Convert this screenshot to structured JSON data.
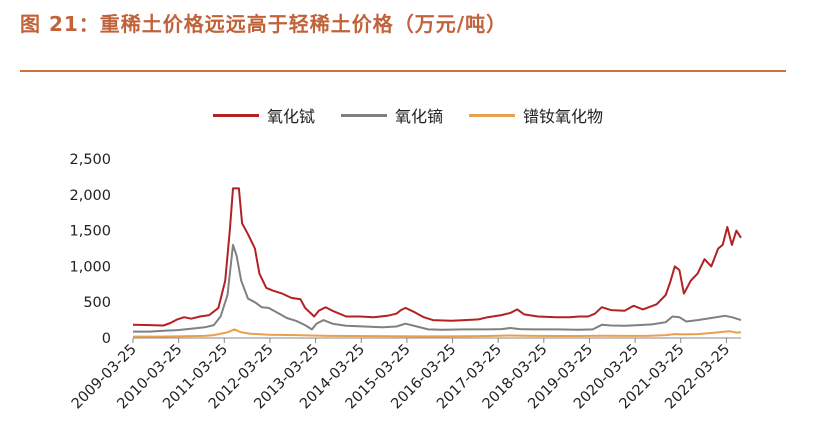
{
  "header": {
    "title": "图 21：重稀土价格远远高于轻稀土价格（万元/吨）"
  },
  "chart_data": {
    "type": "line",
    "title": "图 21：重稀土价格远远高于轻稀土价格（万元/吨）",
    "xlabel": "",
    "ylabel": "",
    "ylim": [
      0,
      2500
    ],
    "yticks": [
      "0",
      "500",
      "1,000",
      "1,500",
      "2,000",
      "2,500"
    ],
    "categories": [
      "2009-03-25",
      "2010-03-25",
      "2011-03-25",
      "2012-03-25",
      "2013-03-25",
      "2014-03-25",
      "2015-03-25",
      "2016-03-25",
      "2017-03-25",
      "2018-03-25",
      "2019-03-25",
      "2020-03-25",
      "2021-03-25",
      "2022-03-25"
    ],
    "x_start": 2009.23,
    "x_end": 2022.55,
    "legend_position": "top-center",
    "series": [
      {
        "name": "氧化铽",
        "color": "#b22222",
        "points": [
          [
            2009.23,
            185
          ],
          [
            2009.6,
            180
          ],
          [
            2009.9,
            175
          ],
          [
            2010.05,
            210
          ],
          [
            2010.2,
            260
          ],
          [
            2010.35,
            290
          ],
          [
            2010.5,
            270
          ],
          [
            2010.7,
            300
          ],
          [
            2010.9,
            320
          ],
          [
            2011.1,
            420
          ],
          [
            2011.25,
            800
          ],
          [
            2011.35,
            1500
          ],
          [
            2011.42,
            2090
          ],
          [
            2011.55,
            2090
          ],
          [
            2011.62,
            1600
          ],
          [
            2011.75,
            1450
          ],
          [
            2011.9,
            1250
          ],
          [
            2012.0,
            900
          ],
          [
            2012.15,
            700
          ],
          [
            2012.3,
            660
          ],
          [
            2012.5,
            620
          ],
          [
            2012.7,
            560
          ],
          [
            2012.9,
            540
          ],
          [
            2013.0,
            420
          ],
          [
            2013.2,
            300
          ],
          [
            2013.3,
            380
          ],
          [
            2013.45,
            430
          ],
          [
            2013.6,
            380
          ],
          [
            2013.9,
            300
          ],
          [
            2014.2,
            300
          ],
          [
            2014.5,
            290
          ],
          [
            2014.8,
            310
          ],
          [
            2015.0,
            340
          ],
          [
            2015.1,
            390
          ],
          [
            2015.2,
            420
          ],
          [
            2015.4,
            360
          ],
          [
            2015.6,
            290
          ],
          [
            2015.8,
            250
          ],
          [
            2016.2,
            240
          ],
          [
            2016.5,
            250
          ],
          [
            2016.8,
            260
          ],
          [
            2017.0,
            290
          ],
          [
            2017.3,
            320
          ],
          [
            2017.5,
            350
          ],
          [
            2017.65,
            400
          ],
          [
            2017.8,
            330
          ],
          [
            2018.1,
            300
          ],
          [
            2018.5,
            290
          ],
          [
            2018.8,
            290
          ],
          [
            2019.0,
            300
          ],
          [
            2019.2,
            300
          ],
          [
            2019.35,
            340
          ],
          [
            2019.5,
            430
          ],
          [
            2019.7,
            390
          ],
          [
            2020.0,
            380
          ],
          [
            2020.2,
            450
          ],
          [
            2020.4,
            400
          ],
          [
            2020.7,
            470
          ],
          [
            2020.9,
            600
          ],
          [
            2021.0,
            780
          ],
          [
            2021.1,
            1000
          ],
          [
            2021.2,
            950
          ],
          [
            2021.3,
            620
          ],
          [
            2021.45,
            800
          ],
          [
            2021.6,
            900
          ],
          [
            2021.75,
            1100
          ],
          [
            2021.9,
            1000
          ],
          [
            2022.05,
            1250
          ],
          [
            2022.15,
            1300
          ],
          [
            2022.25,
            1550
          ],
          [
            2022.35,
            1300
          ],
          [
            2022.45,
            1500
          ],
          [
            2022.55,
            1400
          ]
        ]
      },
      {
        "name": "氧化镝",
        "color": "#808080",
        "points": [
          [
            2009.23,
            90
          ],
          [
            2009.6,
            90
          ],
          [
            2009.9,
            100
          ],
          [
            2010.2,
            110
          ],
          [
            2010.5,
            130
          ],
          [
            2010.8,
            150
          ],
          [
            2011.0,
            180
          ],
          [
            2011.15,
            300
          ],
          [
            2011.3,
            600
          ],
          [
            2011.42,
            1300
          ],
          [
            2011.5,
            1150
          ],
          [
            2011.6,
            800
          ],
          [
            2011.75,
            550
          ],
          [
            2011.9,
            500
          ],
          [
            2012.05,
            430
          ],
          [
            2012.2,
            420
          ],
          [
            2012.4,
            350
          ],
          [
            2012.6,
            280
          ],
          [
            2012.8,
            240
          ],
          [
            2013.0,
            180
          ],
          [
            2013.15,
            120
          ],
          [
            2013.25,
            200
          ],
          [
            2013.4,
            250
          ],
          [
            2013.6,
            200
          ],
          [
            2013.9,
            170
          ],
          [
            2014.3,
            160
          ],
          [
            2014.7,
            150
          ],
          [
            2015.0,
            160
          ],
          [
            2015.2,
            200
          ],
          [
            2015.45,
            160
          ],
          [
            2015.7,
            120
          ],
          [
            2016.0,
            115
          ],
          [
            2016.5,
            120
          ],
          [
            2017.0,
            120
          ],
          [
            2017.3,
            125
          ],
          [
            2017.5,
            140
          ],
          [
            2017.7,
            125
          ],
          [
            2018.0,
            120
          ],
          [
            2018.5,
            120
          ],
          [
            2019.0,
            115
          ],
          [
            2019.3,
            120
          ],
          [
            2019.5,
            185
          ],
          [
            2019.7,
            175
          ],
          [
            2020.0,
            170
          ],
          [
            2020.3,
            180
          ],
          [
            2020.6,
            190
          ],
          [
            2020.9,
            220
          ],
          [
            2021.05,
            300
          ],
          [
            2021.2,
            290
          ],
          [
            2021.35,
            230
          ],
          [
            2021.6,
            250
          ],
          [
            2021.9,
            280
          ],
          [
            2022.2,
            310
          ],
          [
            2022.35,
            290
          ],
          [
            2022.55,
            250
          ]
        ]
      },
      {
        "name": "镨钕氧化物",
        "color": "#e8a050",
        "points": [
          [
            2009.23,
            20
          ],
          [
            2009.8,
            20
          ],
          [
            2010.3,
            25
          ],
          [
            2010.8,
            30
          ],
          [
            2011.0,
            40
          ],
          [
            2011.3,
            80
          ],
          [
            2011.45,
            120
          ],
          [
            2011.6,
            80
          ],
          [
            2011.8,
            60
          ],
          [
            2012.2,
            45
          ],
          [
            2012.8,
            40
          ],
          [
            2013.5,
            30
          ],
          [
            2014.0,
            28
          ],
          [
            2014.5,
            27
          ],
          [
            2015.0,
            25
          ],
          [
            2015.5,
            22
          ],
          [
            2016.0,
            22
          ],
          [
            2016.5,
            24
          ],
          [
            2017.0,
            28
          ],
          [
            2017.5,
            35
          ],
          [
            2018.0,
            30
          ],
          [
            2018.5,
            28
          ],
          [
            2019.0,
            28
          ],
          [
            2019.5,
            32
          ],
          [
            2020.0,
            30
          ],
          [
            2020.5,
            30
          ],
          [
            2020.9,
            40
          ],
          [
            2021.1,
            55
          ],
          [
            2021.3,
            50
          ],
          [
            2021.6,
            55
          ],
          [
            2021.9,
            70
          ],
          [
            2022.15,
            85
          ],
          [
            2022.3,
            95
          ],
          [
            2022.45,
            75
          ],
          [
            2022.55,
            80
          ]
        ]
      }
    ]
  }
}
